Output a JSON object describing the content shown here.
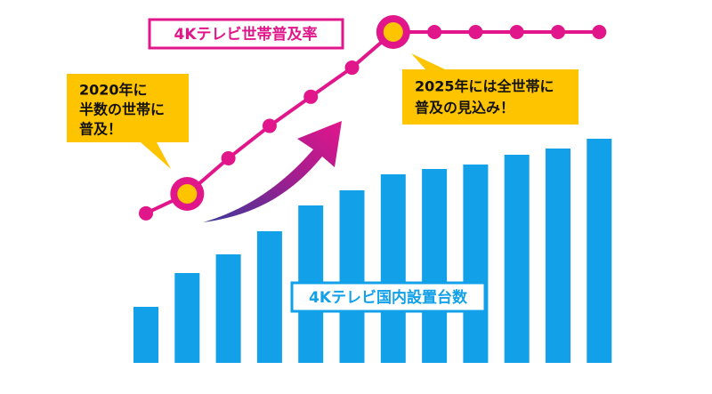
{
  "chart_data": {
    "type": "bar",
    "ylim": [
      0,
      260
    ],
    "y2lim": [
      0,
      100
    ],
    "series": [
      {
        "name": "4Kテレビ国内設置台数",
        "color": "#12a0e8",
        "type": "bar",
        "values": [
          63,
          101,
          122,
          148,
          177,
          194,
          212,
          218,
          223,
          234,
          241,
          252
        ]
      },
      {
        "name": "4Kテレビ世帯普及率",
        "color": "#e2168b",
        "type": "line",
        "axis": "y2",
        "values": [
          44,
          50,
          61,
          71,
          80,
          89,
          100,
          100,
          100,
          100,
          100,
          100
        ]
      }
    ],
    "annotations": [
      [
        "2020年に",
        "半数の世帯に",
        "普及！"
      ],
      [
        "2025年には全世帯に",
        "普及の見込み！"
      ]
    ]
  }
}
